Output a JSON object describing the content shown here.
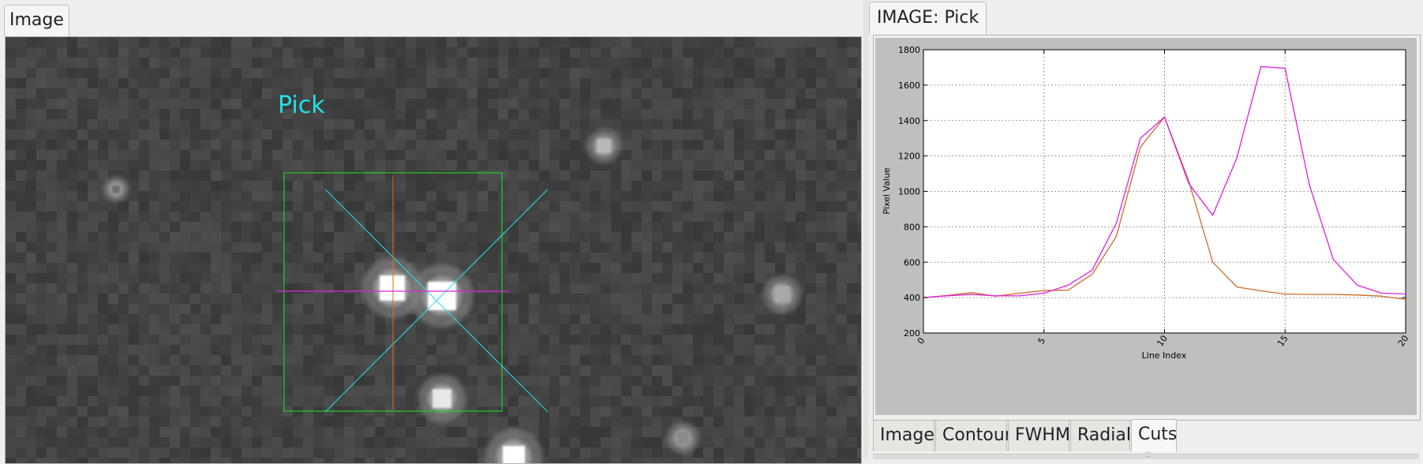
{
  "left_panel": {
    "tab_label": "Image",
    "overlay_label": "Pick",
    "colors": {
      "background": "#3e3e3e",
      "pick_label": "#22e0e8",
      "pick_box": "#22cc22",
      "diagonals": "#22e0e8",
      "vertical_cut": "#e06a1a",
      "horizontal_cut": "#e020e0"
    }
  },
  "right_panel": {
    "tab_label": "IMAGE: Pick",
    "bottom_tabs": [
      {
        "label": "Image",
        "active": false
      },
      {
        "label": "Contour",
        "active": false
      },
      {
        "label": "FWHM",
        "active": false
      },
      {
        "label": "Radial",
        "active": false
      },
      {
        "label": "Cuts",
        "active": true
      }
    ]
  },
  "chart_data": {
    "type": "line",
    "title": "",
    "xlabel": "Line Index",
    "ylabel": "Pixel Value",
    "xlim": [
      0,
      20
    ],
    "ylim": [
      200,
      1800
    ],
    "xticks": [
      0,
      5,
      10,
      15,
      20
    ],
    "yticks": [
      200,
      400,
      600,
      800,
      1000,
      1200,
      1400,
      1600,
      1800
    ],
    "grid": true,
    "legend": "none",
    "x": [
      0,
      1,
      2,
      3,
      4,
      5,
      6,
      7,
      8,
      9,
      10,
      11,
      12,
      13,
      14,
      15,
      16,
      17,
      18,
      19,
      20
    ],
    "series": [
      {
        "color": "#cc6a2a",
        "values": [
          400,
          412,
          428,
          408,
          425,
          440,
          442,
          532,
          745,
          1250,
          1420,
          1060,
          600,
          460,
          438,
          420,
          418,
          418,
          415,
          408,
          390
        ]
      },
      {
        "color": "#e020e0",
        "values": [
          400,
          410,
          418,
          410,
          410,
          425,
          470,
          555,
          820,
          1300,
          1420,
          1045,
          865,
          1190,
          1705,
          1695,
          1040,
          615,
          470,
          425,
          420
        ]
      }
    ]
  }
}
